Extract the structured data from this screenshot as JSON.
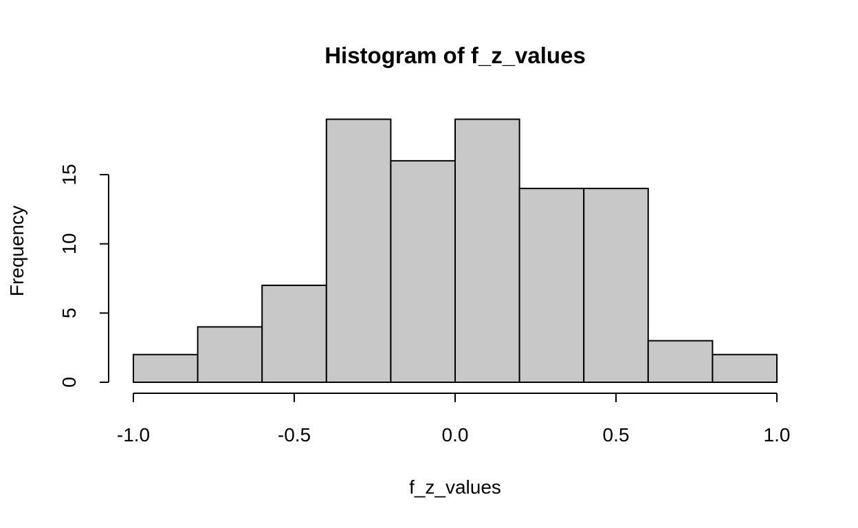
{
  "chart_data": {
    "type": "bar",
    "title": "Histogram of f_z_values",
    "xlabel": "f_z_values",
    "ylabel": "Frequency",
    "bin_edges": [
      -1.0,
      -0.8,
      -0.6,
      -0.4,
      -0.2,
      0.0,
      0.2,
      0.4,
      0.6,
      0.8,
      1.0
    ],
    "values": [
      2,
      4,
      7,
      19,
      16,
      19,
      14,
      14,
      3,
      2
    ],
    "xlim": [
      -1.0,
      1.0
    ],
    "ylim": [
      0,
      15
    ],
    "x_ticks": [
      -1.0,
      -0.5,
      0.0,
      0.5,
      1.0
    ],
    "x_tick_labels": [
      "-1.0",
      "-0.5",
      "0.0",
      "0.5",
      "1.0"
    ],
    "y_ticks": [
      0,
      5,
      10,
      15
    ],
    "y_tick_labels": [
      "0",
      "5",
      "10",
      "15"
    ],
    "bar_color": "#c8c8c8",
    "grid": false,
    "legend": "none"
  }
}
